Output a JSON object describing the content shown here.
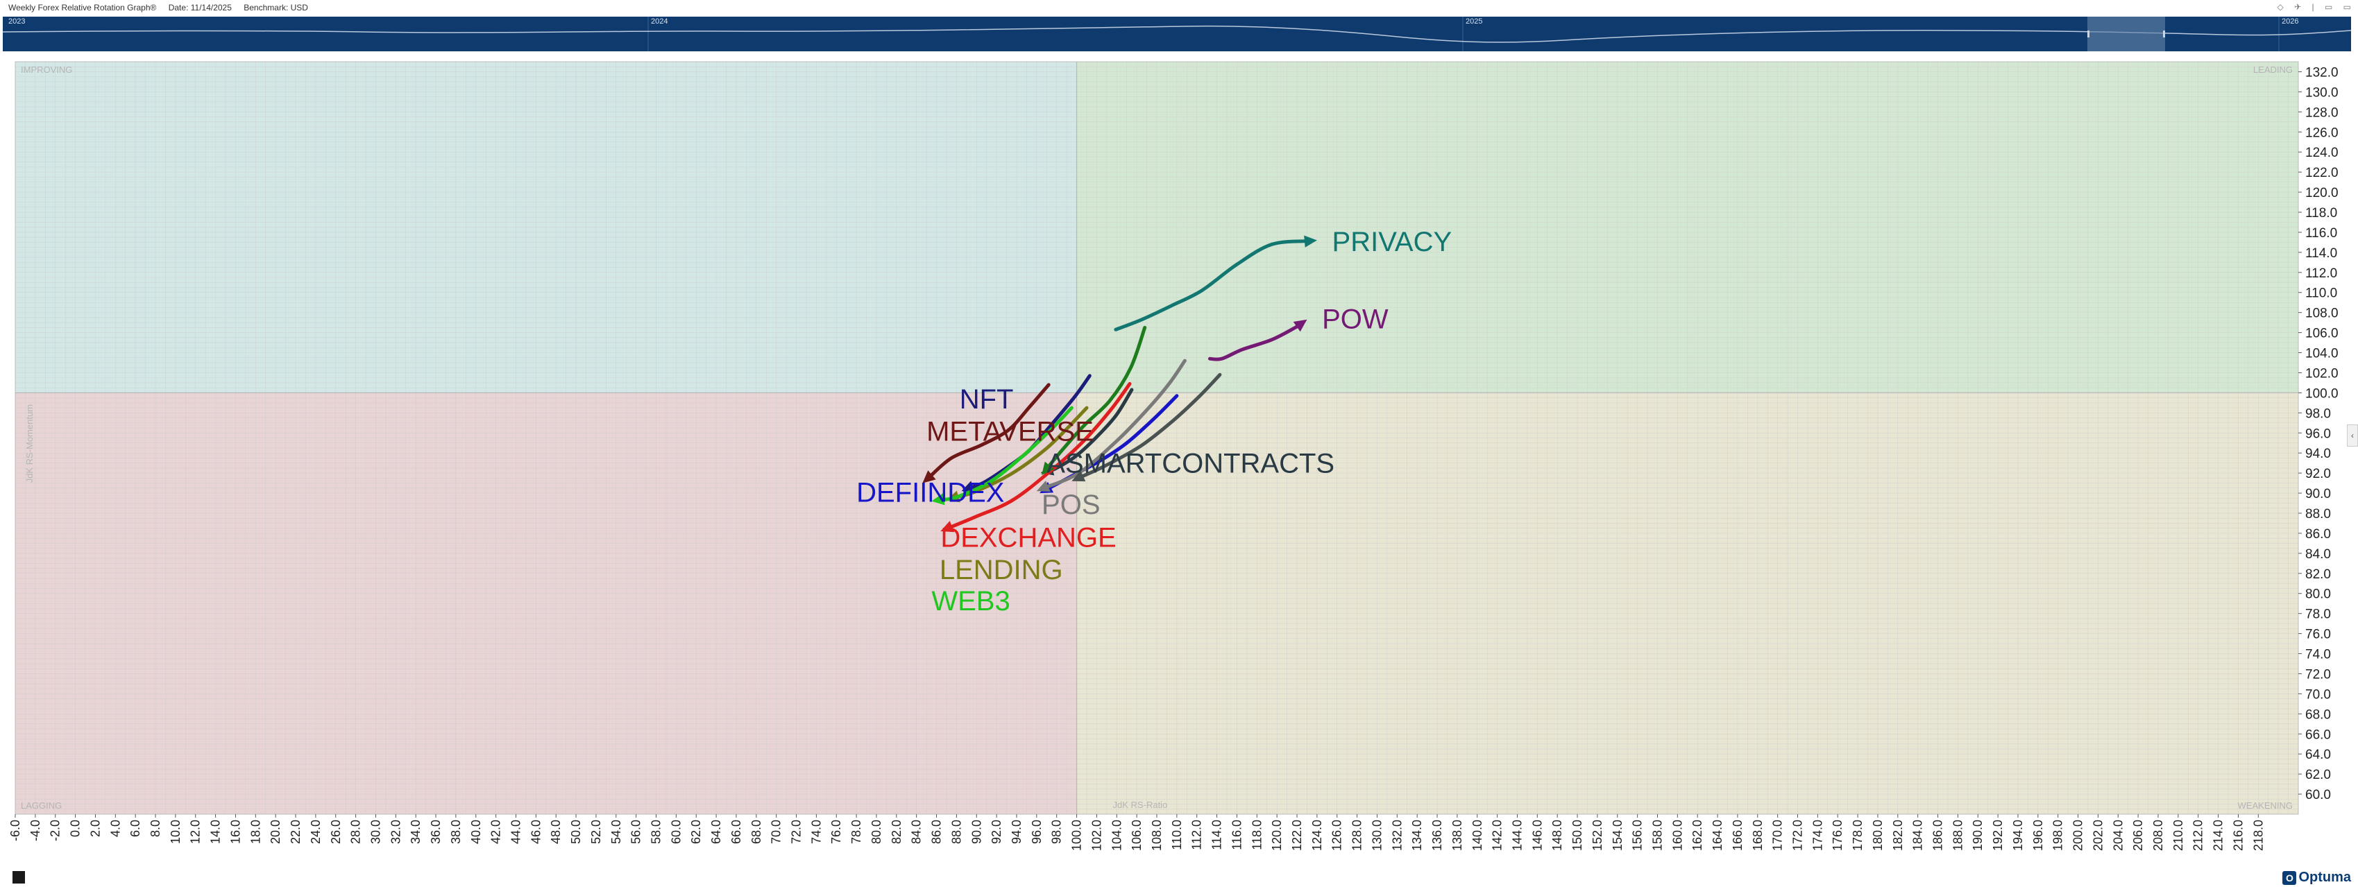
{
  "header": {
    "title": "Weekly Forex Relative Rotation Graph®",
    "date_label": "Date: 11/14/2025",
    "benchmark_label": "Benchmark:  USD"
  },
  "icons": [
    "diamond-icon",
    "pin-icon",
    "separator-icon",
    "print-icon",
    "expand-icon"
  ],
  "timeline": {
    "years": [
      "2023",
      "2024",
      "2025",
      "2026"
    ],
    "colors": {
      "background": "#0e3a6e",
      "line": "#b9c9dc",
      "window": "#5f7fa3"
    }
  },
  "footer": {
    "brand": "Optuma",
    "status_mark": ""
  },
  "colors": {
    "improving": "#d3e7e6",
    "leading": "#d4e7d3",
    "lagging": "#e8d4d4",
    "weakening": "#e8e5d3",
    "grid": "#c7c7c7"
  },
  "chart_data": {
    "type": "scatter",
    "title": "Weekly Forex Relative Rotation Graph®",
    "xlabel": "JdK RS-Ratio",
    "ylabel": "JdK RS-Momentum",
    "xlim": [
      -6,
      222
    ],
    "ylim": [
      58,
      133
    ],
    "center": [
      100,
      100
    ],
    "x_tick_step": 2,
    "y_tick_step": 2,
    "quadrants": {
      "top_left": "IMPROVING",
      "top_right": "LEADING",
      "bottom_left": "LAGGING",
      "bottom_right": "WEAKENING"
    },
    "series": [
      {
        "name": "PRIVACY",
        "color": "#137771",
        "points": [
          [
            103.9,
            106.3
          ],
          [
            106.5,
            107.3
          ],
          [
            109.5,
            108.7
          ],
          [
            112.5,
            110.2
          ],
          [
            116.0,
            112.8
          ],
          [
            119.5,
            114.8
          ],
          [
            124.0,
            115.2
          ]
        ],
        "label_pos": [
          125.5,
          115.1
        ]
      },
      {
        "name": "POW",
        "color": "#741a74",
        "points": [
          [
            113.3,
            103.4
          ],
          [
            114.5,
            103.4
          ],
          [
            116.5,
            104.3
          ],
          [
            119.5,
            105.3
          ],
          [
            122.0,
            106.6
          ],
          [
            123.0,
            107.3
          ]
        ],
        "label_pos": [
          124.5,
          107.4
        ]
      },
      {
        "name": "NFT",
        "color": "#1c1c7a",
        "points": [
          [
            101.3,
            101.7
          ],
          [
            99.8,
            99.6
          ],
          [
            97.2,
            96.5
          ],
          [
            95.2,
            94.2
          ],
          [
            93.1,
            92.6
          ],
          [
            90.8,
            91.1
          ],
          [
            88.5,
            90.2
          ]
        ],
        "label_pos": [
          88.3,
          99.4
        ]
      },
      {
        "name": "METAVERSE",
        "color": "#6e1717",
        "points": [
          [
            97.2,
            100.8
          ],
          [
            95.3,
            98.6
          ],
          [
            93.2,
            96.3
          ],
          [
            90.5,
            94.8
          ],
          [
            87.5,
            93.5
          ],
          [
            84.6,
            91.0
          ]
        ],
        "label_pos": [
          85.0,
          96.2
        ]
      },
      {
        "name": "DEFIINDEX",
        "color": "#1616c6",
        "points": [
          [
            110.0,
            99.7
          ],
          [
            107.8,
            97.5
          ],
          [
            105.0,
            95.0
          ],
          [
            102.3,
            93.2
          ],
          [
            99.5,
            91.7
          ],
          [
            96.3,
            90.0
          ]
        ],
        "label_pos": [
          78.0,
          90.1
        ]
      },
      {
        "name": "ASMARTCONTRACTS",
        "color": "#2a3a45",
        "points": [
          [
            105.5,
            100.3
          ],
          [
            103.9,
            97.7
          ],
          [
            101.8,
            95.4
          ],
          [
            99.8,
            93.6
          ],
          [
            97.8,
            92.4
          ],
          [
            96.4,
            92.0
          ]
        ],
        "label_pos": [
          97.0,
          93.0
        ]
      },
      {
        "name": "POS",
        "color": "#7a7a7a",
        "points": [
          [
            110.8,
            103.2
          ],
          [
            109.3,
            101.0
          ],
          [
            107.2,
            98.5
          ],
          [
            104.0,
            95.2
          ],
          [
            100.2,
            92.0
          ],
          [
            96.0,
            90.2
          ]
        ],
        "label_pos": [
          96.5,
          88.9
        ]
      },
      {
        "name": "DEXCHANGE",
        "color": "#e02020",
        "points": [
          [
            105.3,
            100.9
          ],
          [
            103.4,
            98.3
          ],
          [
            100.6,
            95.1
          ],
          [
            97.5,
            92.3
          ],
          [
            93.6,
            89.3
          ],
          [
            89.8,
            87.6
          ],
          [
            86.4,
            86.2
          ]
        ],
        "label_pos": [
          86.4,
          85.6
        ]
      },
      {
        "name": "LENDING",
        "color": "#7b7b17",
        "points": [
          [
            101.0,
            98.5
          ],
          [
            99.0,
            96.4
          ],
          [
            96.8,
            94.3
          ],
          [
            93.6,
            92.0
          ],
          [
            90.0,
            90.2
          ],
          [
            87.0,
            89.3
          ]
        ],
        "label_pos": [
          86.3,
          82.4
        ]
      },
      {
        "name": "WEB3",
        "color": "#22c622",
        "points": [
          [
            99.5,
            98.5
          ],
          [
            97.4,
            96.3
          ],
          [
            94.5,
            93.6
          ],
          [
            91.3,
            91.1
          ],
          [
            88.0,
            89.6
          ],
          [
            85.5,
            89.2
          ]
        ],
        "label_pos": [
          85.5,
          79.3
        ]
      },
      {
        "name": "",
        "color": "#1d7d1d",
        "points": [
          [
            106.8,
            106.5
          ],
          [
            105.4,
            102.5
          ],
          [
            103.3,
            99.2
          ],
          [
            100.7,
            96.7
          ],
          [
            98.3,
            94.0
          ],
          [
            96.5,
            91.8
          ]
        ],
        "label_pos": [
          106.8,
          106.5
        ]
      },
      {
        "name": "",
        "color": "#4a5252",
        "points": [
          [
            114.3,
            101.8
          ],
          [
            112.2,
            99.6
          ],
          [
            109.6,
            97.2
          ],
          [
            106.4,
            94.7
          ],
          [
            102.8,
            92.7
          ],
          [
            99.5,
            91.2
          ]
        ],
        "label_pos": [
          114.3,
          101.8
        ]
      }
    ]
  }
}
